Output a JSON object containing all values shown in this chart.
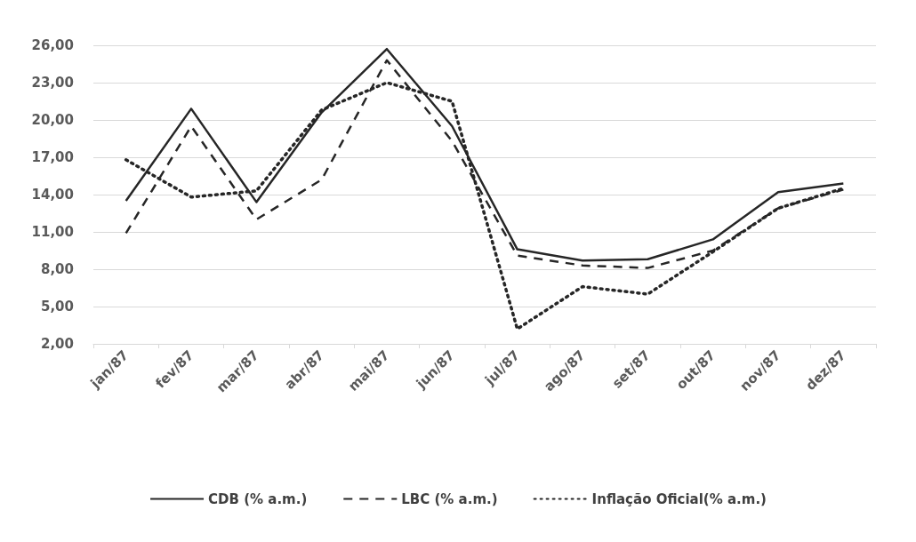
{
  "chart_data": {
    "type": "line",
    "categories": [
      "jan/87",
      "fev/87",
      "mar/87",
      "abr/87",
      "mai/87",
      "jun/87",
      "jul/87",
      "ago/87",
      "set/87",
      "out/87",
      "nov/87",
      "dez/87"
    ],
    "series": [
      {
        "name": "CDB (% a.m.)",
        "color": "#262626",
        "line_style": "solid",
        "values": [
          13.5,
          20.9,
          13.4,
          20.6,
          25.7,
          19.5,
          9.6,
          8.7,
          8.8,
          10.4,
          14.2,
          14.9
        ]
      },
      {
        "name": "LBC (% a.m.)",
        "color": "#262626",
        "line_style": "dashed",
        "values": [
          10.9,
          19.5,
          12.0,
          15.2,
          24.8,
          18.3,
          9.1,
          8.3,
          8.1,
          9.5,
          12.9,
          14.4
        ]
      },
      {
        "name": "Inflação Oficial(% a.m.)",
        "color": "#262626",
        "line_style": "dotted",
        "values": [
          16.8,
          13.8,
          14.3,
          20.8,
          23.0,
          21.5,
          3.2,
          6.6,
          6.0,
          9.4,
          12.9,
          14.5
        ]
      }
    ],
    "ylim": [
      2,
      26
    ],
    "yticks": [
      {
        "value": 2,
        "label": "2,00"
      },
      {
        "value": 5,
        "label": "5,00"
      },
      {
        "value": 8,
        "label": "8,00"
      },
      {
        "value": 11,
        "label": "11,00"
      },
      {
        "value": 14,
        "label": "14,00"
      },
      {
        "value": 17,
        "label": "17,00"
      },
      {
        "value": 20,
        "label": "20,00"
      },
      {
        "value": 23,
        "label": "23,00"
      },
      {
        "value": 26,
        "label": "26,00"
      }
    ],
    "grid": "y",
    "legend": "bottom",
    "marker": "none"
  }
}
